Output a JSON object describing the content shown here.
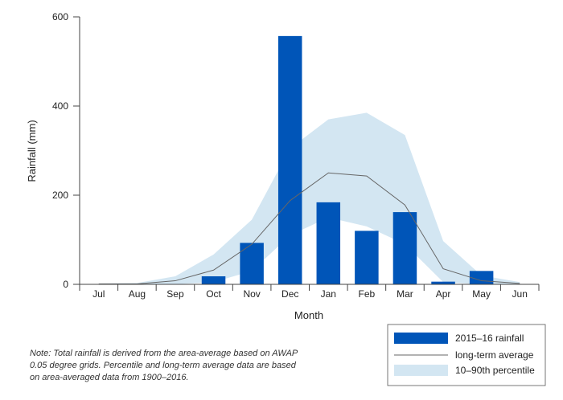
{
  "chart_data": {
    "type": "bar",
    "title": "",
    "xlabel": "Month",
    "ylabel": "Rainfall (mm)",
    "ylim": [
      0,
      600
    ],
    "yticks": [
      0,
      200,
      400,
      600
    ],
    "categories": [
      "Jul",
      "Aug",
      "Sep",
      "Oct",
      "Nov",
      "Dec",
      "Jan",
      "Feb",
      "Mar",
      "Apr",
      "May",
      "Jun"
    ],
    "series": [
      {
        "name": "2015–16 rainfall",
        "kind": "bar",
        "color": "#0055b8",
        "values": [
          0,
          0,
          0,
          18,
          93,
          557,
          184,
          120,
          162,
          6,
          30,
          0
        ]
      },
      {
        "name": "long-term average",
        "kind": "line",
        "color": "#666666",
        "values": [
          1,
          1,
          8,
          32,
          90,
          188,
          250,
          243,
          178,
          35,
          8,
          2
        ]
      },
      {
        "name": "10–90th percentile",
        "kind": "band",
        "color": "#d3e6f2",
        "lower": [
          0,
          0,
          0,
          5,
          30,
          110,
          150,
          130,
          90,
          5,
          0,
          0
        ],
        "upper": [
          2,
          3,
          18,
          67,
          145,
          305,
          370,
          385,
          335,
          97,
          20,
          5
        ]
      }
    ],
    "legend_position": "bottom-right",
    "grid": false
  },
  "note": "Note: Total rainfall is derived from the area-average based on AWAP 0.05 degree grids. Percentile and long-term average data are based on area-averaged data from 1900–2016."
}
